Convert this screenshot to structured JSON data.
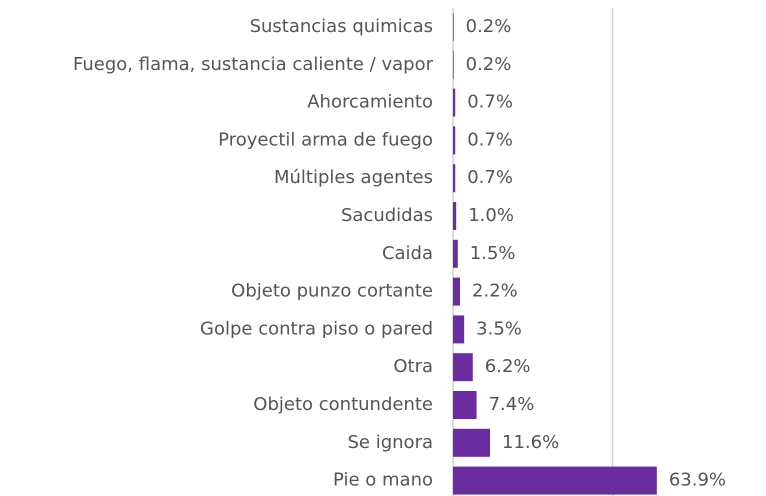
{
  "chart_data": {
    "type": "barh",
    "categories": [
      "Sustancias quimicas",
      "Fuego, flama, sustancia caliente / vapor",
      "Ahorcamiento",
      "Proyectil arma de fuego",
      "Múltiples agentes",
      "Sacudidas",
      "Caida",
      "Objeto punzo cortante",
      "Golpe contra piso o pared",
      "Otra",
      "Objeto contundente",
      "Se ignora",
      "Pie o mano"
    ],
    "values": [
      0.2,
      0.2,
      0.7,
      0.7,
      0.7,
      1.0,
      1.5,
      2.2,
      3.5,
      6.2,
      7.4,
      11.6,
      63.9
    ],
    "value_labels": [
      "0.2%",
      "0.2%",
      "0.7%",
      "0.7%",
      "0.7%",
      "1.0%",
      "1.5%",
      "2.2%",
      "3.5%",
      "6.2%",
      "7.4%",
      "11.6%",
      "63.9%"
    ],
    "color": "#6a2c9e",
    "xlim": [
      0,
      100
    ],
    "xticks": [
      0,
      50
    ],
    "grid": true
  }
}
